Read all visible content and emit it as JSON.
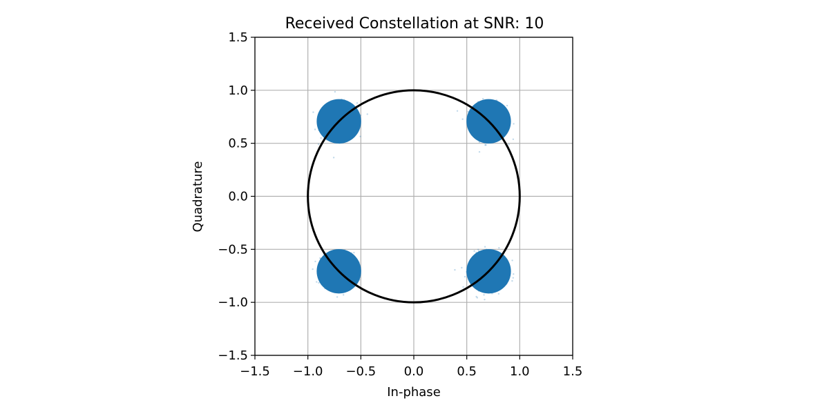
{
  "chart_data": {
    "type": "scatter",
    "title": "Received Constellation at SNR: 10",
    "xlabel": "In-phase",
    "ylabel": "Quadrature",
    "xlim": [
      -1.5,
      1.5
    ],
    "ylim": [
      -1.5,
      1.5
    ],
    "grid": true,
    "x_ticks": [
      -1.5,
      -1.0,
      -0.5,
      0.0,
      0.5,
      1.0,
      1.5
    ],
    "y_ticks": [
      -1.5,
      -1.0,
      -0.5,
      0.0,
      0.5,
      1.0,
      1.5
    ],
    "x_tick_labels": [
      "−1.5",
      "−1.0",
      "−0.5",
      "0.0",
      "0.5",
      "1.0",
      "1.5"
    ],
    "y_tick_labels": [
      "−1.5",
      "−1.0",
      "−0.5",
      "0.0",
      "0.5",
      "1.0",
      "1.5"
    ],
    "series": [
      {
        "kind": "scatter-clusters",
        "color": "#1f77b4",
        "clusters": [
          {
            "x": 0.707,
            "y": 0.707
          },
          {
            "x": -0.707,
            "y": 0.707
          },
          {
            "x": -0.707,
            "y": -0.707
          },
          {
            "x": 0.707,
            "y": -0.707
          }
        ],
        "core_radius": 0.21,
        "spread_radius": 0.3
      },
      {
        "kind": "reference-circle",
        "color": "#000000",
        "center": [
          0,
          0
        ],
        "radius": 1.0
      }
    ]
  }
}
